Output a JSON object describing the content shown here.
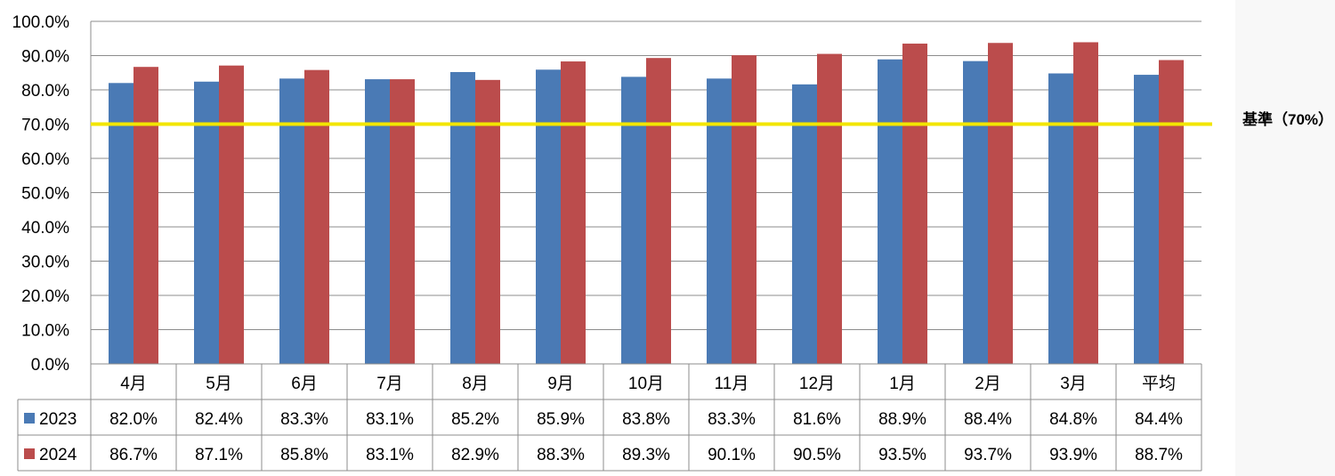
{
  "chart_data": {
    "type": "bar",
    "categories": [
      "4月",
      "5月",
      "6月",
      "7月",
      "8月",
      "9月",
      "10月",
      "11月",
      "12月",
      "1月",
      "2月",
      "3月",
      "平均"
    ],
    "series": [
      {
        "name": "2023",
        "color": "#4a7ab5",
        "values": [
          82.0,
          82.4,
          83.3,
          83.1,
          85.2,
          85.9,
          83.8,
          83.3,
          81.6,
          88.9,
          88.4,
          84.8,
          84.4
        ],
        "labels": [
          "82.0%",
          "82.4%",
          "83.3%",
          "83.1%",
          "85.2%",
          "85.9%",
          "83.8%",
          "83.3%",
          "81.6%",
          "88.9%",
          "88.4%",
          "84.8%",
          "84.4%"
        ]
      },
      {
        "name": "2024",
        "color": "#bb4c4c",
        "values": [
          86.7,
          87.1,
          85.8,
          83.1,
          82.9,
          88.3,
          89.3,
          90.1,
          90.5,
          93.5,
          93.7,
          93.9,
          88.7
        ],
        "labels": [
          "86.7%",
          "87.1%",
          "85.8%",
          "83.1%",
          "82.9%",
          "88.3%",
          "89.3%",
          "90.1%",
          "90.5%",
          "93.5%",
          "93.7%",
          "93.9%",
          "88.7%"
        ]
      }
    ],
    "ylim": [
      0,
      100
    ],
    "yticks": [
      0,
      10,
      20,
      30,
      40,
      50,
      60,
      70,
      80,
      90,
      100
    ],
    "ytick_labels": [
      "0.0%",
      "10.0%",
      "20.0%",
      "30.0%",
      "40.0%",
      "50.0%",
      "60.0%",
      "70.0%",
      "80.0%",
      "90.0%",
      "100.0%"
    ],
    "reference_line": {
      "value": 70,
      "label": "基準（70%）",
      "color": "#f2e600"
    },
    "grid": true,
    "legend": "data-table",
    "data_table": true
  }
}
